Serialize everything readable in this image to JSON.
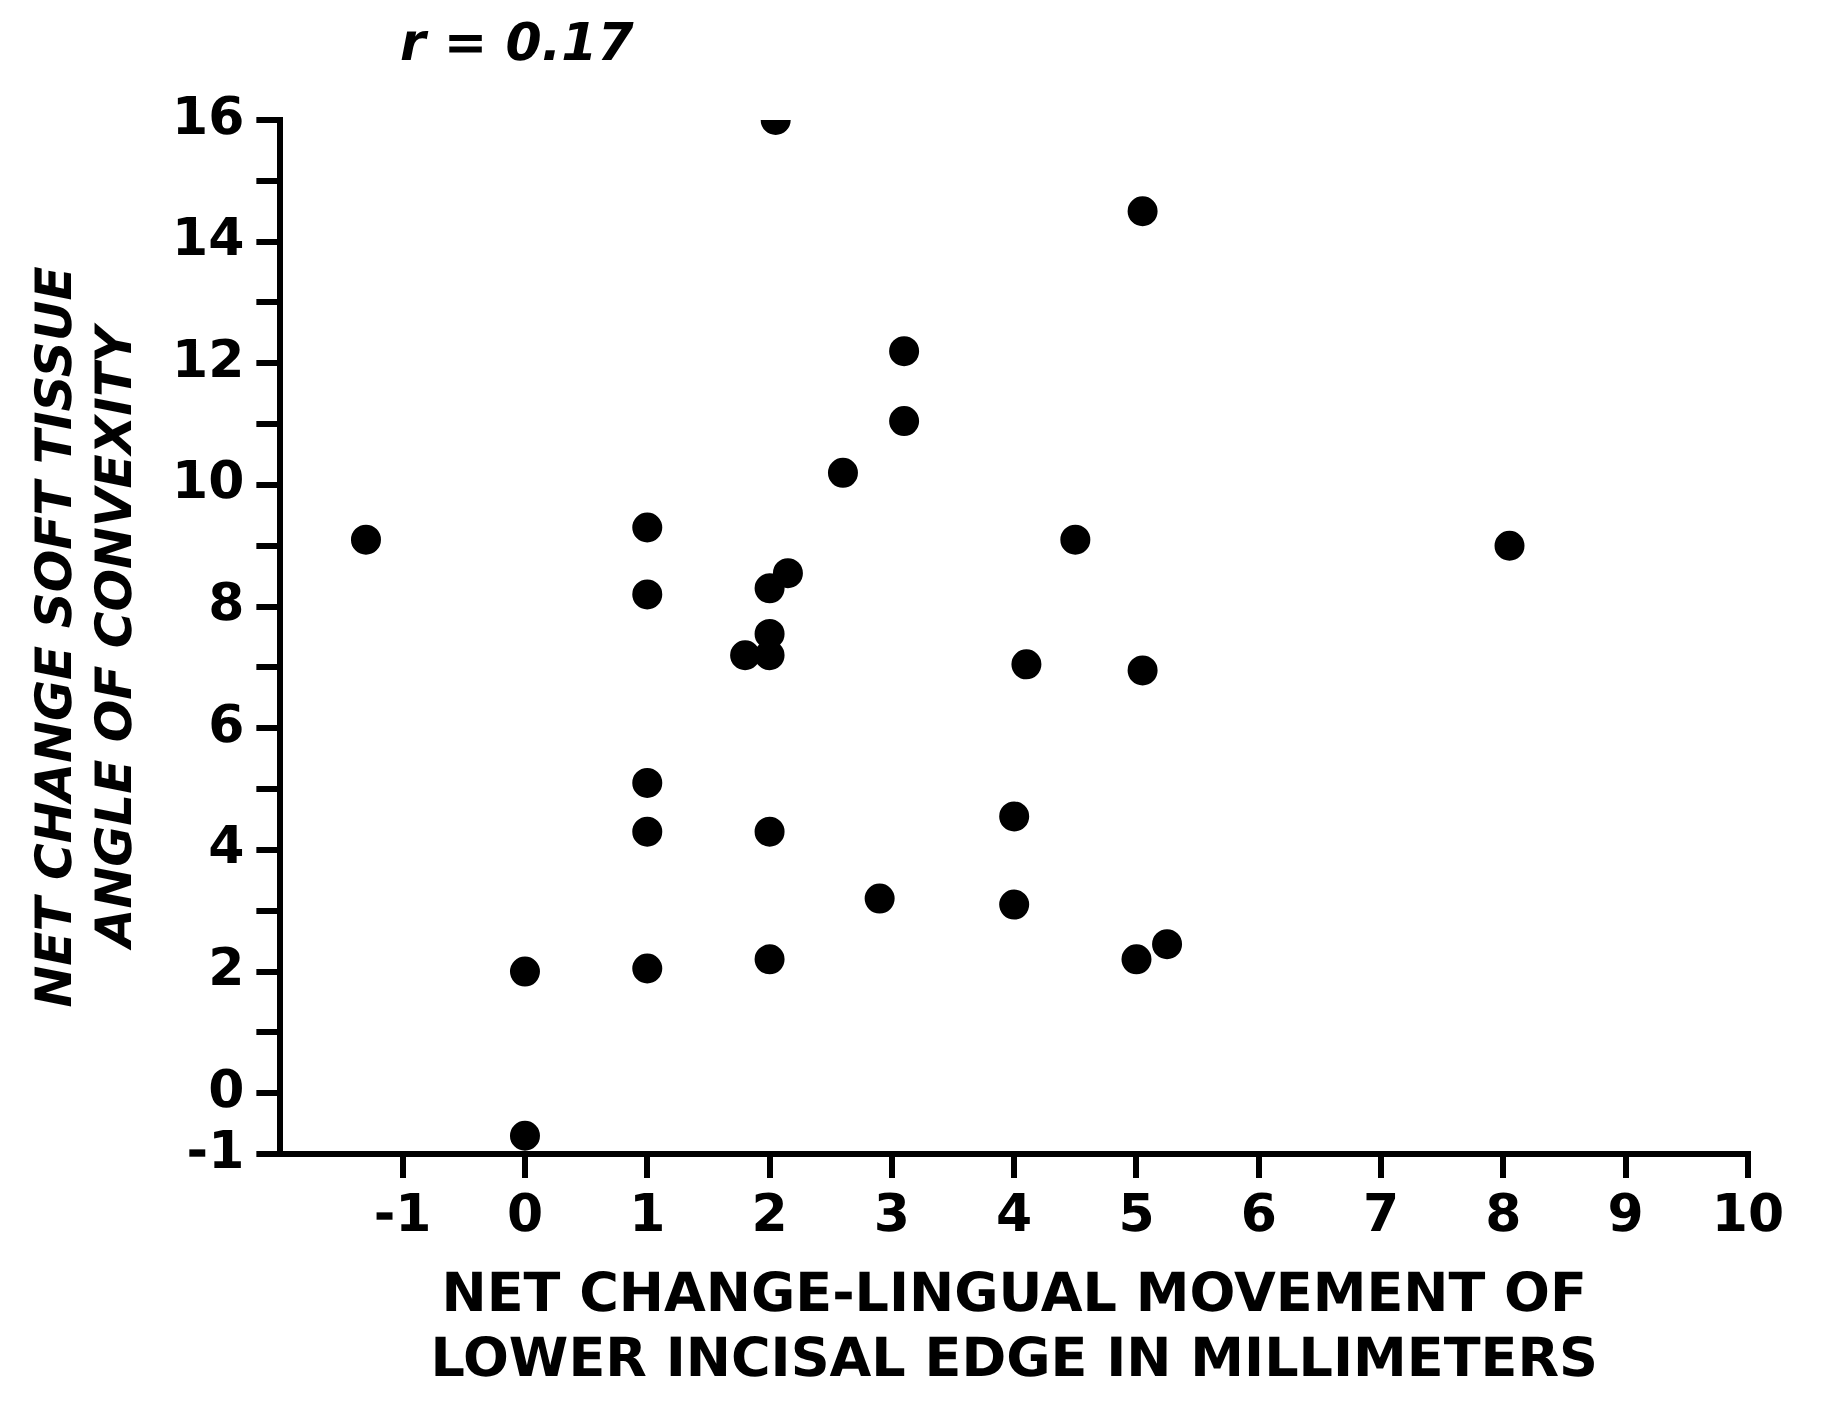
{
  "chart_data": {
    "type": "scatter",
    "xlabel": "NET CHANGE-LINGUAL MOVEMENT OF\nLOWER INCISAL EDGE IN MILLIMETERS",
    "ylabel": "NET CHANGE SOFT TISSUE\nANGLE OF CONVEXITY",
    "annotations": [
      "r = 0.17"
    ],
    "x": [
      -1.3,
      0,
      0,
      1,
      1,
      1,
      1,
      1,
      2.05,
      2,
      2.15,
      2,
      1.8,
      2,
      2,
      2,
      2.6,
      3.1,
      3.1,
      2.9,
      4.1,
      4,
      4,
      4.5,
      5.05,
      5.05,
      5,
      5.25,
      8.05
    ],
    "series": [
      {
        "color": "#000000",
        "values": [
          9.1,
          2.0,
          -0.7,
          9.3,
          8.2,
          5.1,
          4.3,
          2.05,
          16.0,
          8.3,
          8.55,
          7.55,
          7.2,
          7.2,
          4.3,
          2.2,
          10.2,
          12.2,
          11.05,
          3.2,
          7.05,
          4.55,
          3.1,
          9.1,
          14.5,
          6.95,
          2.2,
          2.45,
          9.0
        ]
      }
    ],
    "xlim": [
      -2,
      10
    ],
    "xticks": [
      -1,
      0,
      1,
      2,
      3,
      4,
      5,
      6,
      7,
      8,
      9,
      10
    ],
    "ylim": [
      -1,
      16
    ],
    "yticks": [
      -1,
      0,
      {
        "value": 1,
        "label": null
      },
      2,
      {
        "value": 3,
        "label": null
      },
      4,
      {
        "value": 5,
        "label": null
      },
      6,
      {
        "value": 7,
        "label": null
      },
      8,
      {
        "value": 9,
        "label": null
      },
      10,
      {
        "value": 11,
        "label": null
      },
      12,
      {
        "value": 13,
        "label": null
      },
      14,
      {
        "value": 15,
        "label": null
      },
      16
    ],
    "marker": "circle",
    "grid": false,
    "legend": false
  }
}
